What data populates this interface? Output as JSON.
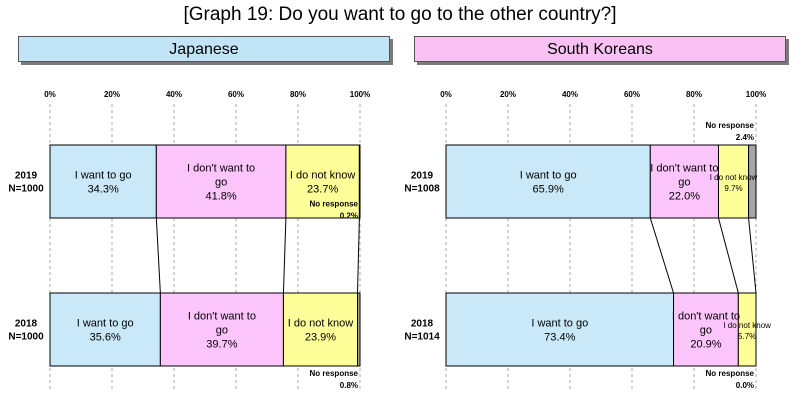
{
  "title": "[Graph 19: Do you want to go to the other country?]",
  "colors": {
    "want": "#c9e8f8",
    "dont": "#fcc5fc",
    "dontknow": "#ffff99",
    "noresp": "#a6a6a6",
    "border": "#000000",
    "grid": "#aaaaaa"
  },
  "chart_data": [
    {
      "type": "bar",
      "orientation": "horizontal",
      "stacked": true,
      "panel_label": "Japanese",
      "xlim": [
        0,
        100
      ],
      "ticks": [
        "0%",
        "20%",
        "40%",
        "60%",
        "80%",
        "100%"
      ],
      "grid": true,
      "rows": [
        {
          "year": "2019",
          "n": "N=1000",
          "segments": [
            {
              "key": "want",
              "label": "I want to go",
              "value": 34.3,
              "text": "34.3%"
            },
            {
              "key": "dont",
              "label": "I don't want to go",
              "value": 41.8,
              "text": "41.8%"
            },
            {
              "key": "dontknow",
              "label": "I do not know",
              "value": 23.7,
              "text": "23.7%"
            },
            {
              "key": "noresp",
              "label": "No response",
              "value": 0.2,
              "text": "0.2%"
            }
          ]
        },
        {
          "year": "2018",
          "n": "N=1000",
          "segments": [
            {
              "key": "want",
              "label": "I want to go",
              "value": 35.6,
              "text": "35.6%"
            },
            {
              "key": "dont",
              "label": "I don't want to go",
              "value": 39.7,
              "text": "39.7%"
            },
            {
              "key": "dontknow",
              "label": "I do not know",
              "value": 23.9,
              "text": "23.9%"
            },
            {
              "key": "noresp",
              "label": "No response",
              "value": 0.8,
              "text": "0.8%"
            }
          ]
        }
      ]
    },
    {
      "type": "bar",
      "orientation": "horizontal",
      "stacked": true,
      "panel_label": "South Koreans",
      "xlim": [
        0,
        100
      ],
      "ticks": [
        "0%",
        "20%",
        "40%",
        "60%",
        "80%",
        "100%"
      ],
      "grid": true,
      "rows": [
        {
          "year": "2019",
          "n": "N=1008",
          "segments": [
            {
              "key": "want",
              "label": "I want to go",
              "value": 65.9,
              "text": "65.9%"
            },
            {
              "key": "dont",
              "label": "I don't want to go",
              "value": 22.0,
              "text": "22.0%"
            },
            {
              "key": "dontknow",
              "label": "I do not know",
              "value": 9.7,
              "text": "9.7%"
            },
            {
              "key": "noresp",
              "label": "No response",
              "value": 2.4,
              "text": "2.4%"
            }
          ]
        },
        {
          "year": "2018",
          "n": "N=1014",
          "segments": [
            {
              "key": "want",
              "label": "I want to go",
              "value": 73.4,
              "text": "73.4%"
            },
            {
              "key": "dont",
              "label": "I don't want to go",
              "value": 20.9,
              "text": "20.9%"
            },
            {
              "key": "dontknow",
              "label": "I do not know",
              "value": 5.7,
              "text": "5.7%"
            },
            {
              "key": "noresp",
              "label": "No response",
              "value": 0.0,
              "text": "0.0%"
            }
          ]
        }
      ]
    }
  ]
}
